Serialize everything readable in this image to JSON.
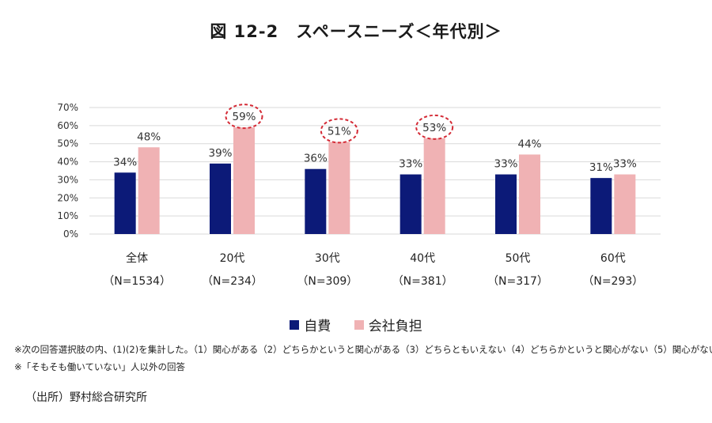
{
  "title": "図 12-2　スペースニーズ＜年代別＞",
  "chart_data": {
    "type": "bar",
    "categories": [
      "全体",
      "20代",
      "30代",
      "40代",
      "50代",
      "60代"
    ],
    "category_n": [
      "（N=1534）",
      "（N=234）",
      "（N=309）",
      "（N=381）",
      "（N=317）",
      "（N=293）"
    ],
    "series": [
      {
        "name": "自費",
        "values": [
          34,
          39,
          36,
          33,
          33,
          31
        ],
        "labels": [
          "34%",
          "39%",
          "36%",
          "33%",
          "33%",
          "31%"
        ]
      },
      {
        "name": "会社負担",
        "values": [
          48,
          59,
          51,
          53,
          44,
          33
        ],
        "labels": [
          "48%",
          "59%",
          "51%",
          "53%",
          "44%",
          "33%"
        ]
      }
    ],
    "highlighted": {
      "series": 1,
      "categories": [
        1,
        2,
        3
      ]
    },
    "ylim": [
      0,
      70
    ],
    "yticks": [
      0,
      10,
      20,
      30,
      40,
      50,
      60,
      70
    ],
    "ytick_labels": [
      "0%",
      "10%",
      "20%",
      "30%",
      "40%",
      "50%",
      "60%",
      "70%"
    ],
    "xlabel": "",
    "ylabel": "",
    "legend_position": "bottom-center",
    "grid": true
  },
  "colors": {
    "series_0": "#0c1a78",
    "series_1": "#f0b2b4",
    "grid": "#d9d9d9",
    "highlight": "#d42a35"
  },
  "notes": {
    "note1": "※次の回答選択肢の内、(1)(2)を集計した。（1）関心がある（2）どちらかというと関心がある（3）どちらともいえない（4）どちらかというと関心がない（5）関心がない",
    "note2": "※「そもそも働いていない」人以外の回答"
  },
  "source": "（出所）野村総合研究所"
}
